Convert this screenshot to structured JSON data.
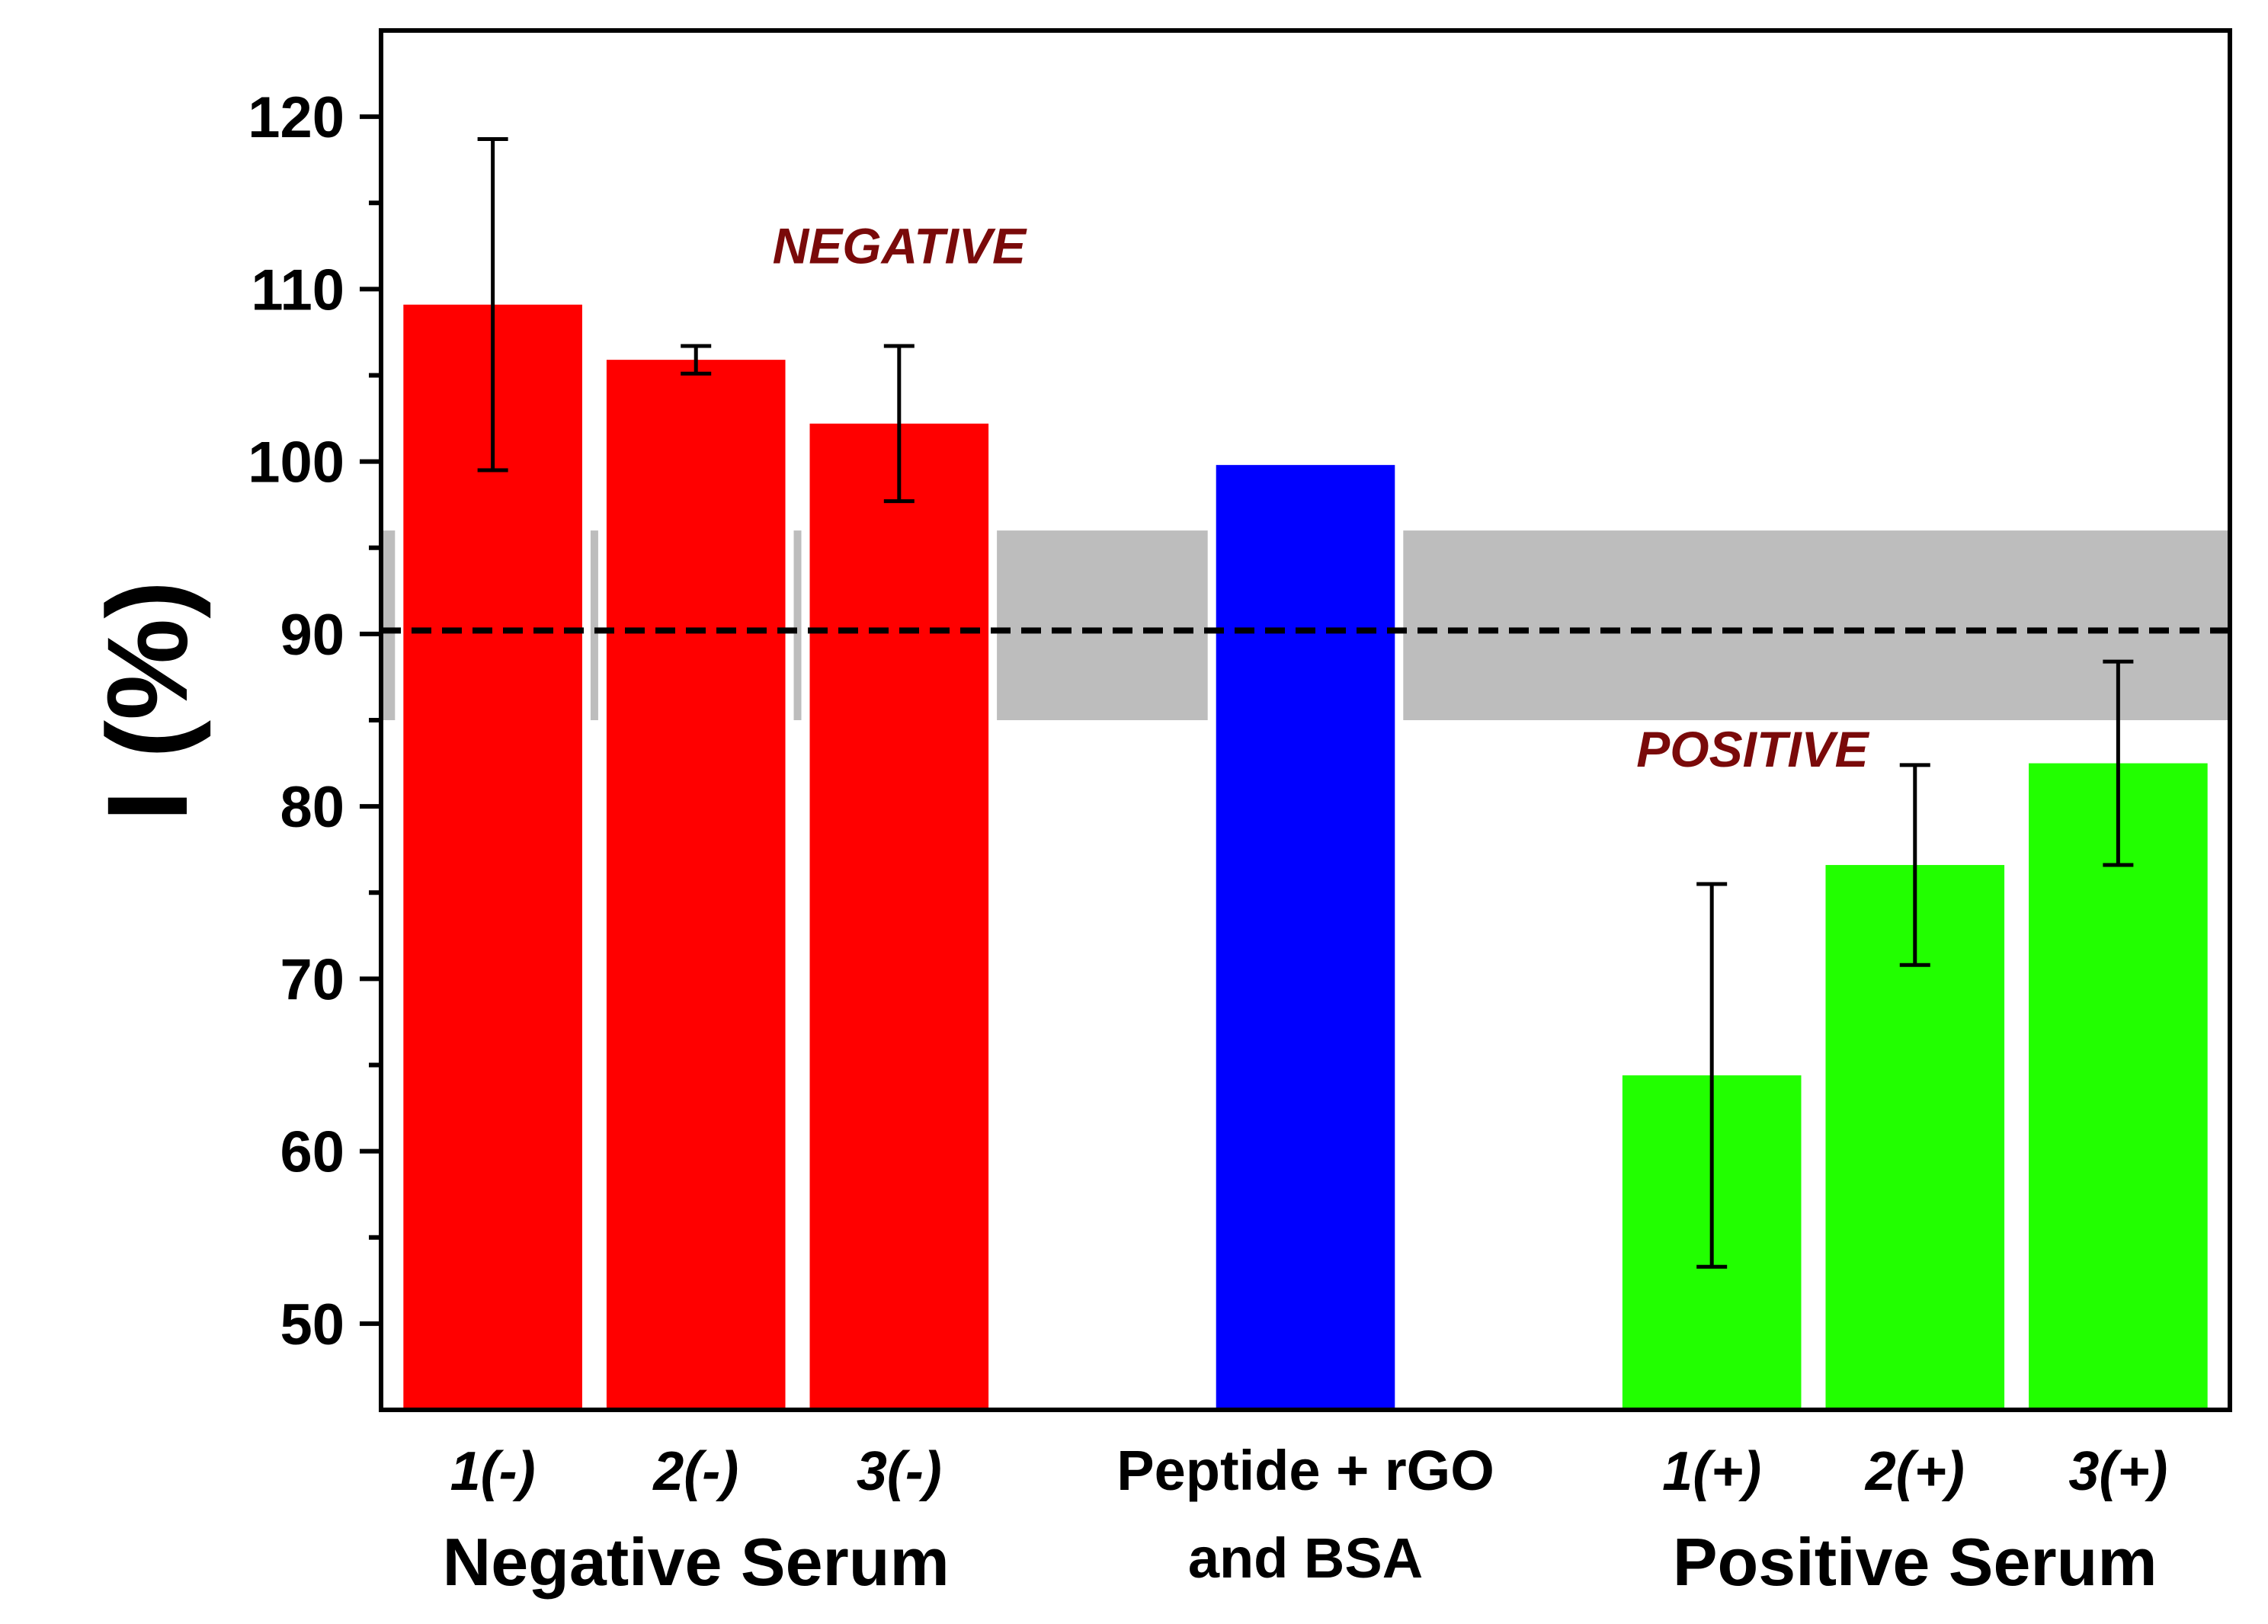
{
  "chart_data": {
    "type": "bar",
    "ylabel": "I (%)",
    "ylim": [
      45,
      125
    ],
    "yticks": [
      50,
      60,
      70,
      80,
      90,
      100,
      110,
      120
    ],
    "grid": false,
    "threshold_line": 90.2,
    "threshold_band": [
      85,
      96
    ],
    "band_color": "#bdbdbd",
    "categories": [
      "1(-)",
      "2(-)",
      "3(-)",
      "Peptide + rGO",
      "1(+)",
      "2(+)",
      "3(+)"
    ],
    "category_sublabel": {
      "3": "and BSA"
    },
    "values": [
      109.1,
      105.9,
      102.2,
      99.8,
      64.4,
      76.6,
      82.5
    ],
    "errors": [
      9.6,
      0.8,
      4.5,
      null,
      11.1,
      5.8,
      5.9
    ],
    "colors": [
      "#ff0000",
      "#ff0000",
      "#ff0000",
      "#0000ff",
      "#22ff00",
      "#22ff00",
      "#22ff00"
    ],
    "group_labels": [
      {
        "text": "Negative Serum",
        "categories": [
          0,
          1,
          2
        ]
      },
      {
        "text": "Positive Serum",
        "categories": [
          4,
          5,
          6
        ]
      }
    ],
    "annotations": [
      {
        "text": "NEGATIVE",
        "x": 2.0,
        "y": 111.5,
        "color": "#7a0a0a"
      },
      {
        "text": "POSITIVE",
        "x": 6.2,
        "y": 82.3,
        "color": "#7a0a0a"
      }
    ],
    "x_slots": [
      0,
      1,
      2,
      4,
      6,
      7,
      8
    ],
    "x_range": [
      -0.55,
      8.55
    ]
  }
}
